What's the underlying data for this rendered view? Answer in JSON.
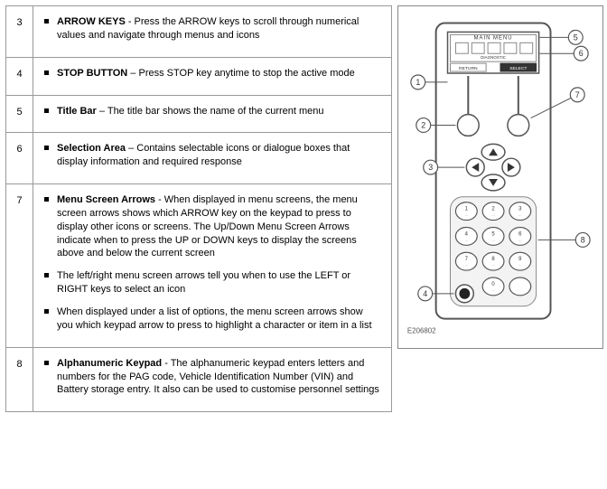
{
  "rows": [
    {
      "num": "3",
      "items": [
        {
          "term": "ARROW KEYS",
          "sep": " - ",
          "text": "Press the ARROW keys to scroll through numerical values and navigate through menus and icons"
        }
      ]
    },
    {
      "num": "4",
      "items": [
        {
          "term": "STOP BUTTON",
          "sep": " – ",
          "text": "Press STOP key anytime to stop the active mode"
        }
      ]
    },
    {
      "num": "5",
      "items": [
        {
          "term": "Title Bar",
          "sep": " – ",
          "text": "The title bar shows the name of the current menu"
        }
      ]
    },
    {
      "num": "6",
      "items": [
        {
          "term": "Selection Area",
          "sep": " – ",
          "text": "Contains selectable icons or dialogue boxes that display information and required response"
        }
      ]
    },
    {
      "num": "7",
      "items": [
        {
          "term": "Menu Screen Arrows",
          "sep": " - ",
          "text": "When displayed in menu screens, the menu screen arrows shows which ARROW key on the keypad to press to display other icons or screens. The Up/Down Menu Screen Arrows indicate when to press the UP or DOWN keys to display the screens above and below the current screen"
        },
        {
          "term": "",
          "sep": "",
          "text": "The left/right menu screen arrows tell you when to use the LEFT or RIGHT keys to select an icon"
        },
        {
          "term": "",
          "sep": "",
          "text": "When displayed under a list of options, the menu screen arrows show you which keypad arrow to press to highlight a character or item in a list"
        }
      ]
    },
    {
      "num": "8",
      "items": [
        {
          "term": "Alphanumeric Keypad",
          "sep": " - ",
          "text": "The alphanumeric keypad enters letters and numbers for the PAG code, Vehicle Identification Number (VIN) and Battery storage entry. It also can be used to customise personnel settings"
        }
      ]
    }
  ],
  "figure": {
    "ref": "E206802",
    "screen_title": "MAIN  MENU",
    "screen_sub": "DIAGNOSTIC",
    "btn_left": "RETURN",
    "btn_right": "SELECT",
    "callouts": [
      "1",
      "2",
      "3",
      "4",
      "5",
      "6",
      "7",
      "8"
    ],
    "keypad_digits": [
      "1",
      "2",
      "3",
      "4",
      "5",
      "6",
      "7",
      "8",
      "9",
      "0"
    ],
    "style": {
      "stroke": "#555",
      "stroke_thin": "#777",
      "fill_light": "#f3f3f3",
      "fill_dark": "#333",
      "text": "#333",
      "callout_fontsize": 9,
      "small_fontsize": 5
    }
  }
}
